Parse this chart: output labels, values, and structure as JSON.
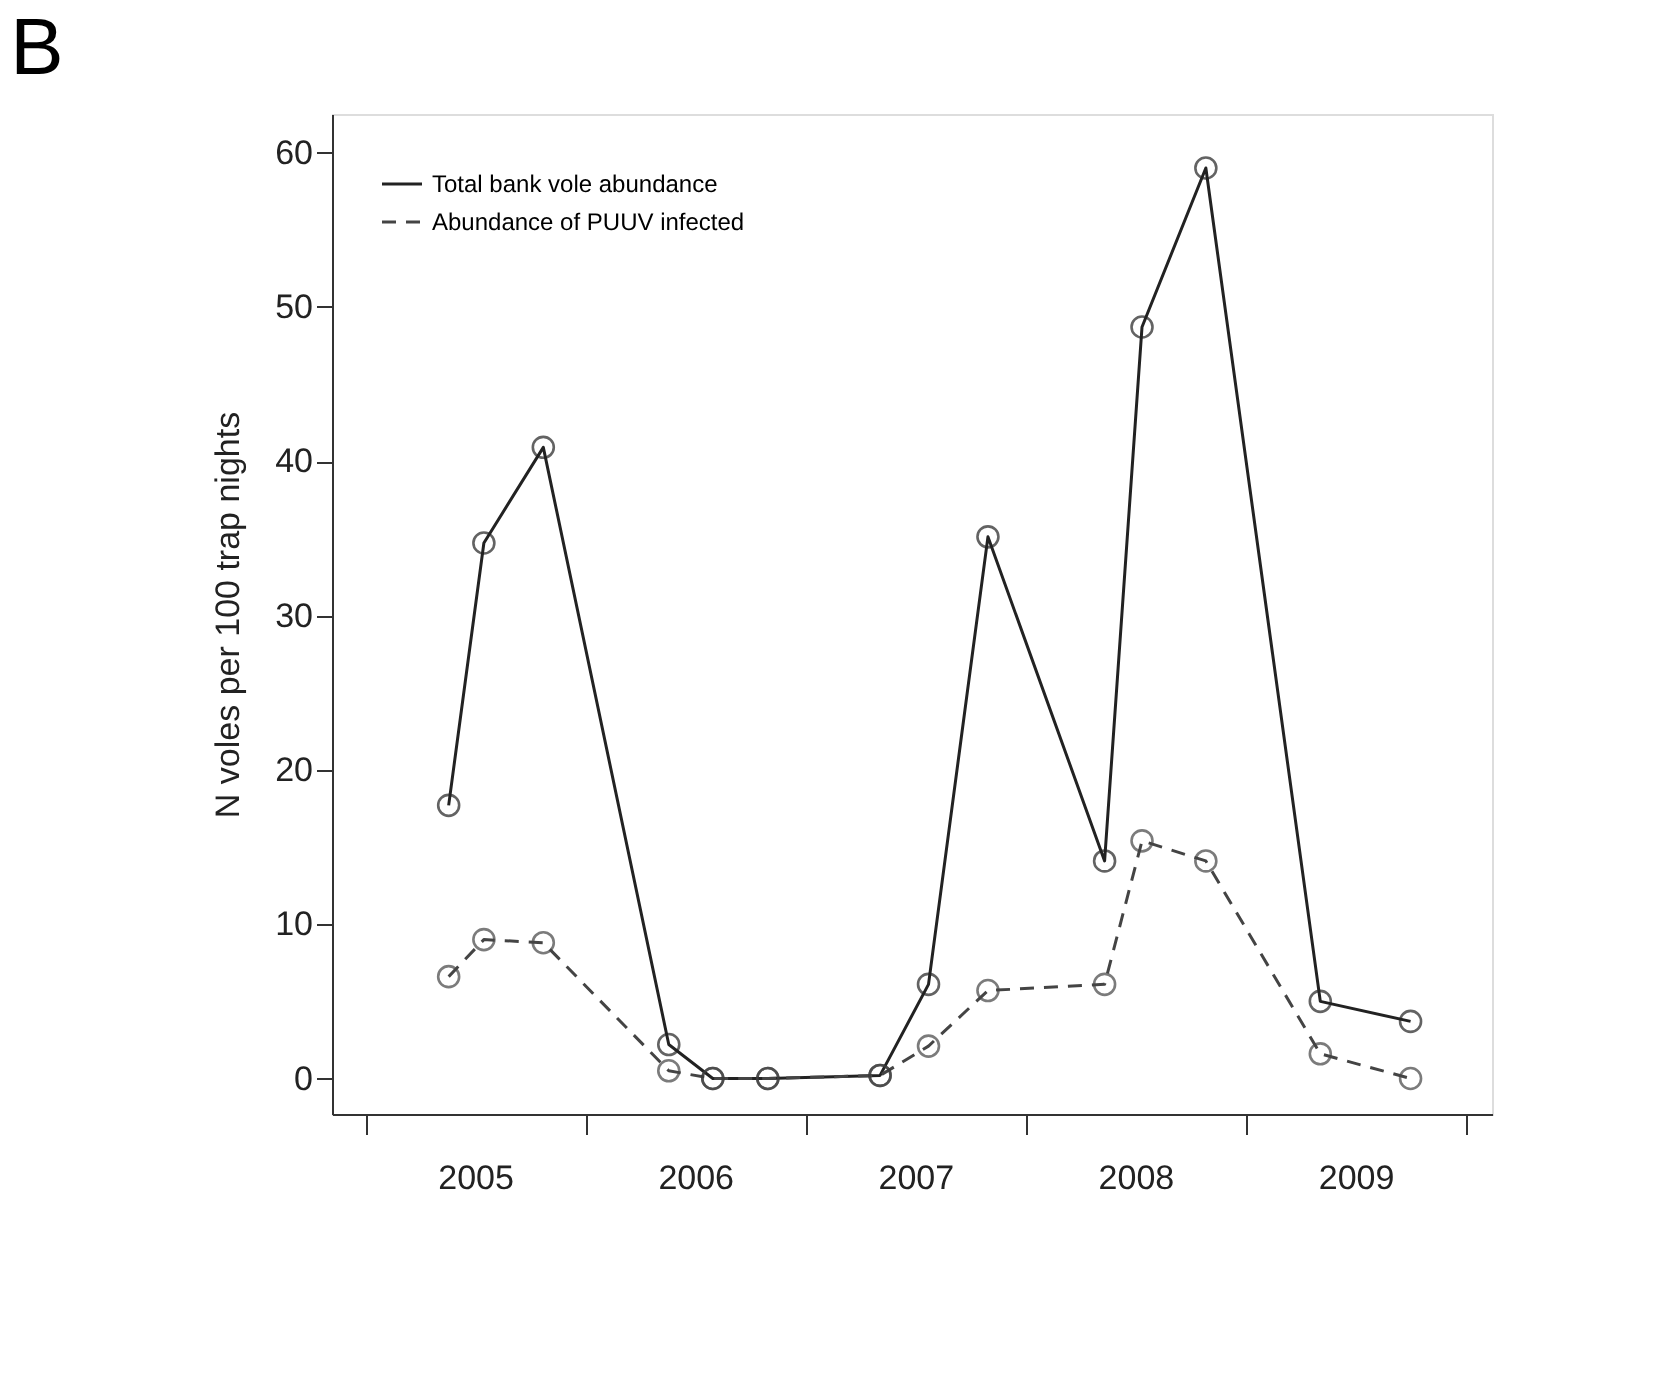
{
  "chart_data": {
    "type": "line",
    "title": "B",
    "ylabel": "N voles per 100 trap nights",
    "xlim": [
      2004.85,
      2010.12
    ],
    "ylim": [
      -2.3,
      62.5
    ],
    "xticks": [
      {
        "value": 2005,
        "label": null
      },
      {
        "value": 2005.5,
        "label": "2005"
      },
      {
        "value": 2006,
        "label": null
      },
      {
        "value": 2006.5,
        "label": "2006"
      },
      {
        "value": 2007,
        "label": null
      },
      {
        "value": 2007.5,
        "label": "2007"
      },
      {
        "value": 2008,
        "label": null
      },
      {
        "value": 2008.5,
        "label": "2008"
      },
      {
        "value": 2009,
        "label": null
      },
      {
        "value": 2009.5,
        "label": "2009"
      },
      {
        "value": 2010,
        "label": null
      }
    ],
    "yticks": [
      0,
      10,
      20,
      30,
      40,
      50,
      60
    ],
    "x": [
      2005.38,
      2005.54,
      2005.81,
      2006.38,
      2006.58,
      2006.83,
      2007.34,
      2007.56,
      2007.83,
      2008.36,
      2008.53,
      2008.82,
      2009.34,
      2009.75
    ],
    "series": [
      {
        "name": "Total bank vole abundance",
        "color": "#222222",
        "line_style": "solid",
        "values": [
          17.7,
          34.7,
          40.9,
          2.2,
          0,
          0,
          0.2,
          6.1,
          35.1,
          14.1,
          48.7,
          59.0,
          5.0,
          3.7
        ]
      },
      {
        "name": "Abundance of PUUV infected",
        "color": "#444444",
        "line_style": "dashed",
        "values": [
          6.6,
          9.0,
          8.8,
          0.5,
          0,
          0,
          0.2,
          2.1,
          5.7,
          6.1,
          15.4,
          14.1,
          1.6,
          0
        ]
      }
    ],
    "marker": "circle",
    "grid": false,
    "legend": "top left"
  }
}
